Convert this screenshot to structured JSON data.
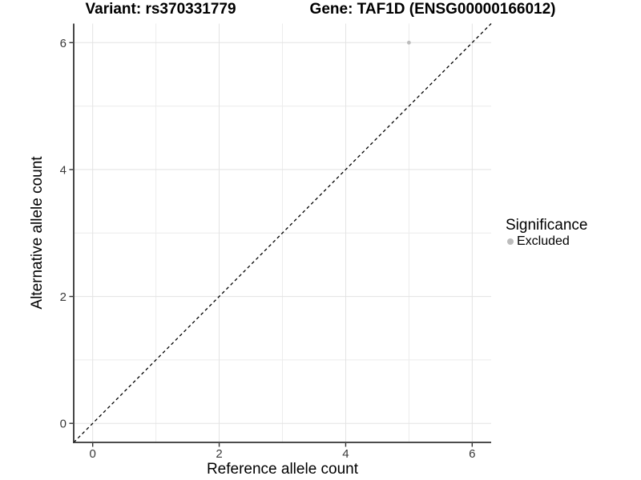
{
  "titles": {
    "variant": "Variant: rs370331779",
    "gene": "Gene: TAF1D (ENSG00000166012)"
  },
  "axes": {
    "x": {
      "label": "Reference allele count",
      "ticks": [
        "0",
        "2",
        "4",
        "6"
      ]
    },
    "y": {
      "label": "Alternative allele count",
      "ticks": [
        "0",
        "2",
        "4",
        "6"
      ]
    }
  },
  "legend": {
    "title": "Significance",
    "items": [
      {
        "label": "Excluded",
        "color": "#bcbcbc"
      }
    ]
  },
  "chart_data": {
    "type": "scatter",
    "title": "Variant: rs370331779 | Gene: TAF1D (ENSG00000166012)",
    "xlabel": "Reference allele count",
    "ylabel": "Alternative allele count",
    "xlim": [
      -0.3,
      6.3
    ],
    "ylim": [
      -0.3,
      6.3
    ],
    "x_breaks": [
      0,
      2,
      4,
      6
    ],
    "y_breaks": [
      0,
      2,
      4,
      6
    ],
    "x_minor_breaks": [
      1,
      3,
      5
    ],
    "y_minor_breaks": [
      1,
      3,
      5
    ],
    "grid": "on",
    "legend_position": "right",
    "series": [
      {
        "name": "Excluded",
        "color": "#bcbcbc",
        "points": [
          {
            "x": 5,
            "y": 6
          }
        ]
      }
    ],
    "reference_line": {
      "slope": 1,
      "intercept": 0,
      "style": "dashed",
      "color": "#000000"
    }
  },
  "style": {
    "background": "#ffffff",
    "grid_major_color": "#e3e3e3",
    "grid_minor_color": "#ececec",
    "axis_line_color": "#333333",
    "tick_color": "#333333",
    "tick_label_color": "#383838",
    "point_color": "#bcbcbc",
    "point_radius": 2.4
  }
}
